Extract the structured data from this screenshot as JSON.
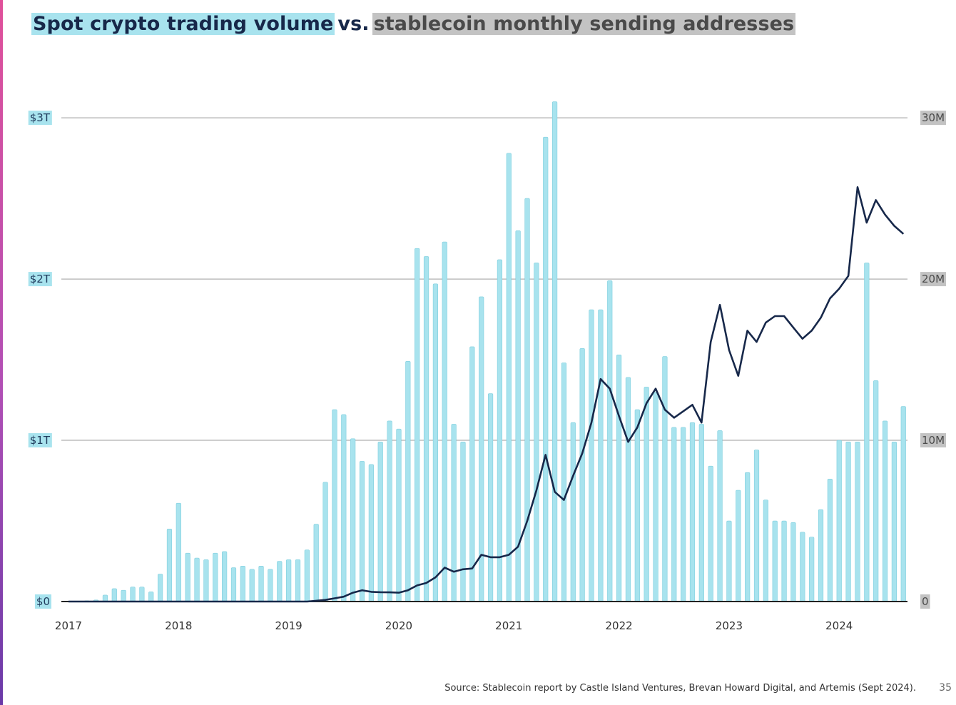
{
  "title": {
    "part1": "Spot crypto trading volume",
    "part2": "vs.",
    "part3": "stablecoin monthly sending addresses"
  },
  "source": "Source: Stablecoin report by Castle Island Ventures, Brevan Howard Digital, and Artemis (Sept 2024).",
  "page_number": "35",
  "colors": {
    "bar": "#a8e3ee",
    "bar_edge": "#7fcfde",
    "line": "#17284a",
    "grid": "#bdbdbd",
    "left_tick_bg": "#a8e3ee",
    "right_tick_bg": "#c3c3c3",
    "accent_strip_top": "#e0509a",
    "accent_strip_bottom": "#6a3aa8"
  },
  "chart_data": {
    "type": "bar+line",
    "title": "Spot crypto trading volume vs. stablecoin monthly sending addresses",
    "x_start": "2017-01",
    "x_ticks": [
      "2017",
      "2018",
      "2019",
      "2020",
      "2021",
      "2022",
      "2023",
      "2024"
    ],
    "y_left": {
      "ticks": [
        "$0",
        "$1T",
        "$2T",
        "$3T"
      ],
      "values": [
        0,
        1,
        2,
        3
      ],
      "unit": "trillion USD",
      "range": [
        0,
        3.12
      ]
    },
    "y_right": {
      "ticks": [
        "0",
        "10M",
        "20M",
        "30M"
      ],
      "values": [
        0,
        10,
        20,
        30
      ],
      "unit": "million",
      "range": [
        0,
        31.2
      ]
    },
    "grid": true,
    "series": [
      {
        "name": "Spot crypto trading volume",
        "type": "bar",
        "axis": "left",
        "values": [
          0.0,
          0.0,
          0.005,
          0.01,
          0.04,
          0.08,
          0.07,
          0.09,
          0.09,
          0.06,
          0.17,
          0.45,
          0.61,
          0.3,
          0.27,
          0.26,
          0.3,
          0.31,
          0.21,
          0.22,
          0.2,
          0.22,
          0.2,
          0.25,
          0.26,
          0.26,
          0.32,
          0.48,
          0.74,
          1.19,
          1.16,
          1.01,
          0.87,
          0.85,
          0.99,
          1.12,
          1.07,
          1.49,
          2.19,
          2.14,
          1.97,
          2.23,
          1.1,
          0.99,
          1.58,
          1.89,
          1.29,
          2.12,
          2.78,
          2.3,
          2.5,
          2.1,
          2.88,
          3.1,
          1.48,
          1.11,
          1.57,
          1.81,
          1.81,
          1.99,
          1.53,
          1.39,
          1.19,
          1.33,
          1.3,
          1.52,
          1.08,
          1.08,
          1.11,
          1.1,
          0.84,
          1.06,
          0.5,
          0.69,
          0.8,
          0.94,
          0.63,
          0.5,
          0.5,
          0.49,
          0.43,
          0.4,
          0.57,
          0.76,
          1.0,
          0.99,
          0.99,
          2.1,
          1.37,
          1.12,
          0.99,
          1.21
        ]
      },
      {
        "name": "Stablecoin monthly sending addresses",
        "type": "line",
        "axis": "right",
        "values": [
          0.0,
          0.0,
          0.0,
          0.0,
          0.0,
          0.0,
          0.0,
          0.0,
          0.0,
          0.0,
          0.0,
          0.0,
          0.0,
          0.0,
          0.0,
          0.0,
          0.0,
          0.0,
          0.0,
          0.0,
          0.0,
          0.0,
          0.0,
          0.0,
          0.0,
          0.0,
          0.0,
          0.05,
          0.1,
          0.2,
          0.3,
          0.55,
          0.7,
          0.6,
          0.58,
          0.57,
          0.55,
          0.7,
          1.0,
          1.15,
          1.5,
          2.1,
          1.85,
          2.0,
          2.05,
          2.9,
          2.75,
          2.75,
          2.9,
          3.4,
          5.0,
          6.9,
          9.1,
          6.8,
          6.3,
          7.8,
          9.2,
          11.1,
          13.8,
          13.2,
          11.5,
          9.9,
          10.8,
          12.3,
          13.2,
          11.9,
          11.4,
          11.8,
          12.2,
          11.1,
          16.1,
          18.4,
          15.6,
          14.0,
          16.8,
          16.1,
          17.3,
          17.7,
          17.7,
          17.0,
          16.3,
          16.8,
          17.6,
          18.8,
          19.4,
          20.2,
          25.7,
          23.5,
          24.9,
          24.0,
          23.3,
          22.8
        ]
      }
    ]
  }
}
